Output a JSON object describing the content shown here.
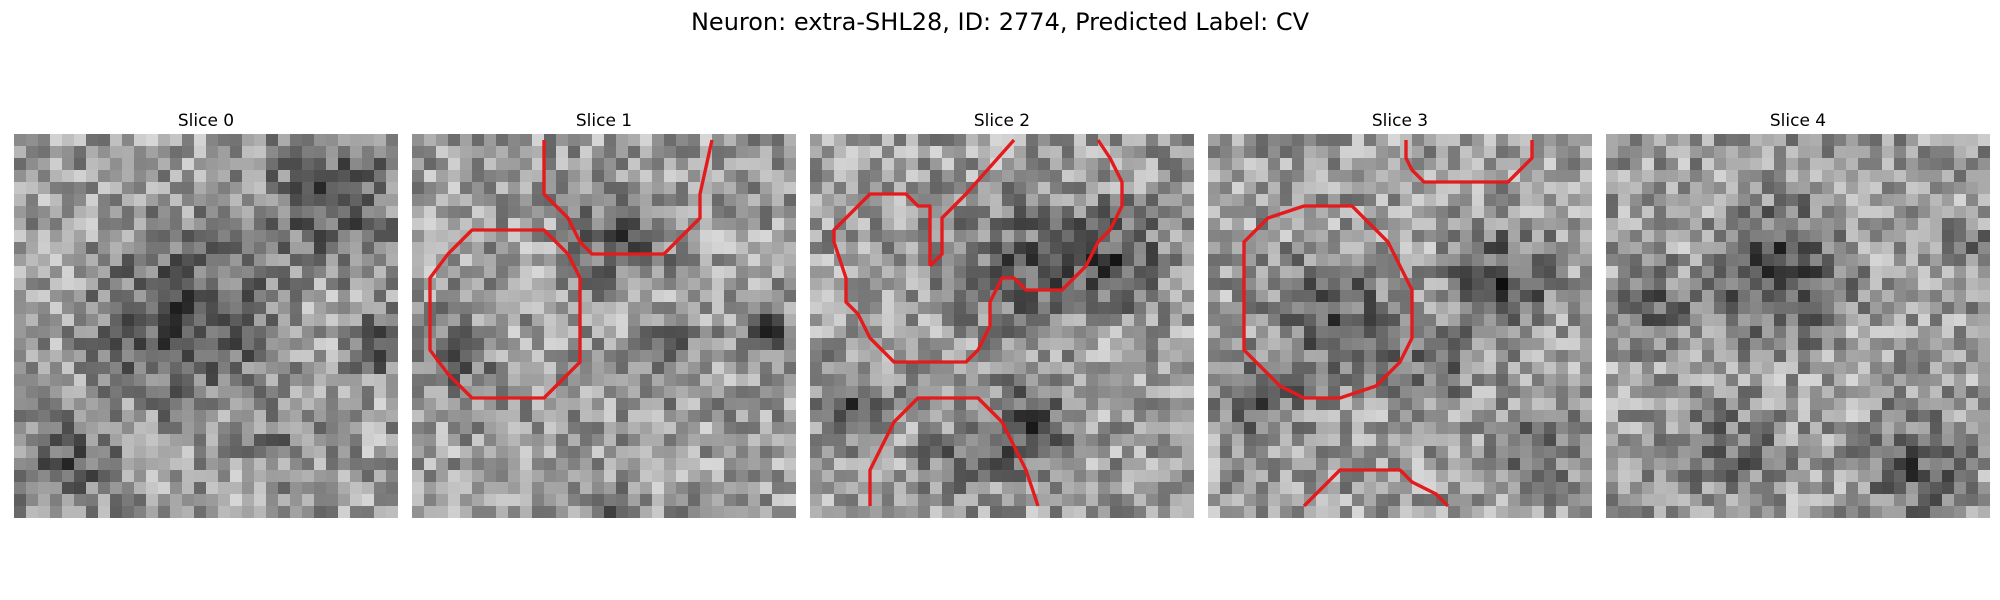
{
  "figure": {
    "title": "Neuron: extra-SHL28, ID: 2774, Predicted Label: CV"
  },
  "panels": [
    {
      "title": "Slice 0"
    },
    {
      "title": "Slice 1"
    },
    {
      "title": "Slice 2"
    },
    {
      "title": "Slice 3"
    },
    {
      "title": "Slice 4"
    }
  ],
  "colors": {
    "contour": "#e41a1c"
  }
}
